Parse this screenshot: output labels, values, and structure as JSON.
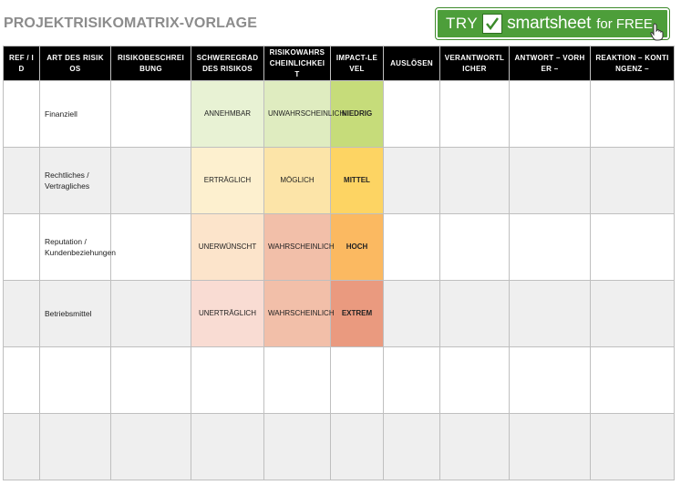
{
  "title": "PROJEKTRISIKOMATRIX-VORLAGE",
  "banner": {
    "try": "TRY",
    "brand": "smartsheet",
    "free": "for FREE"
  },
  "headers": [
    "REF / ID",
    "ART DES RISIKOS",
    "RISIKOBESCHREIBUNG",
    "SCHWEREGRAD DES RISIKOS",
    "RISIKOWAHRSCHEINLICHKEIT",
    "IMPACT-LEVEL",
    "AUSLÖSEN",
    "VERANTWORTLICHER",
    "ANTWORT – VORHER –",
    "REAKTION – KONTINGENZ –"
  ],
  "rows": [
    {
      "type": "Finanziell",
      "severity": "ANNEHMBAR",
      "probability": "UNWAHRSCHEINLICH",
      "impact": "NIEDRIG"
    },
    {
      "type": "Rechtliches / Vertragliches",
      "severity": "ERTRÄGLICH",
      "probability": "MÖGLICH",
      "impact": "MITTEL"
    },
    {
      "type": "Reputation / Kundenbeziehungen",
      "severity": "UNERWÜNSCHT",
      "probability": "WAHRSCHEINLICH",
      "impact": "HOCH"
    },
    {
      "type": "Betriebsmittel",
      "severity": "UNERTRÄGLICH",
      "probability": "WAHRSCHEINLICH",
      "impact": "EXTREM"
    },
    {
      "type": "",
      "severity": "",
      "probability": "",
      "impact": ""
    },
    {
      "type": "",
      "severity": "",
      "probability": "",
      "impact": ""
    }
  ],
  "colors": {
    "severity": [
      "#e8f2d4",
      "#fdf0cf",
      "#fce4cb",
      "#f9dcd3"
    ],
    "probability": [
      "#dfecc0",
      "#fce4a8",
      "#f2bfa9",
      "#f2bfa9"
    ],
    "impact": [
      "#c6dc7a",
      "#fdd463",
      "#fbb961",
      "#ea9a7f"
    ],
    "banner": "#4d9e3a",
    "header": "#000000"
  },
  "icons": [
    "checkmark-icon",
    "hand-cursor-icon"
  ]
}
